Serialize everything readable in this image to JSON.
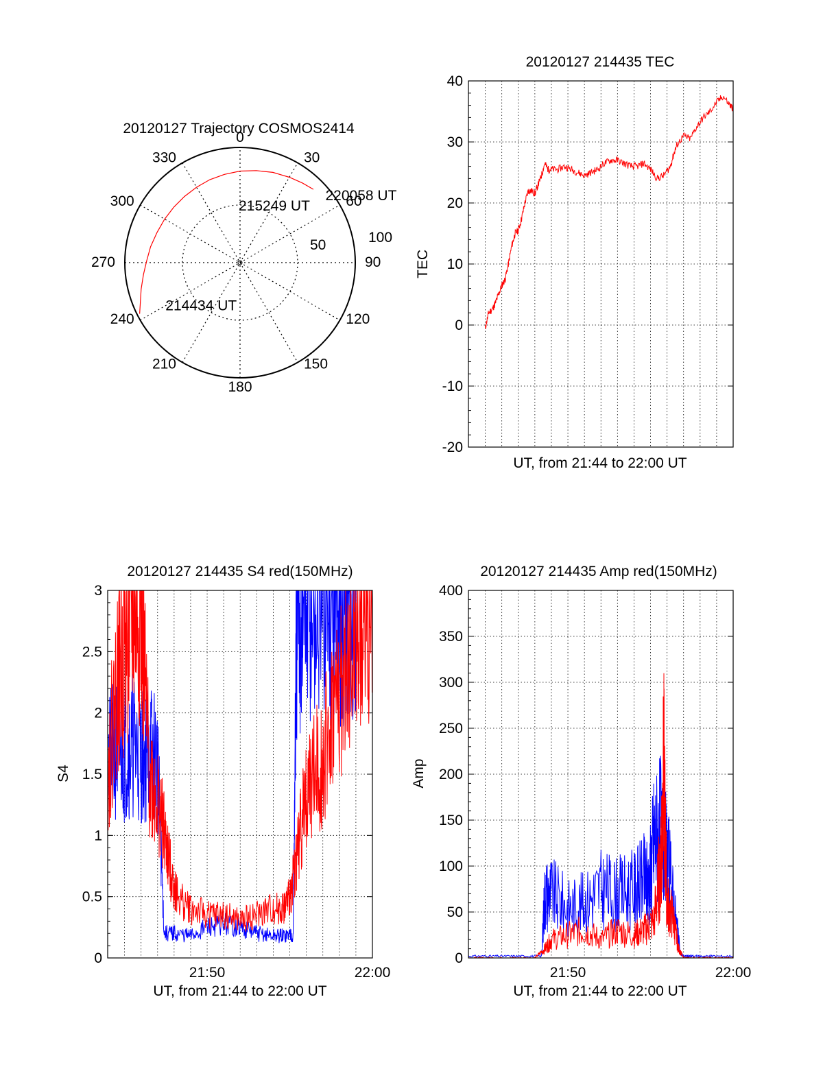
{
  "chart_data": [
    {
      "type": "polar",
      "title": "20120127 Trajectory COSMOS2414",
      "azimuth_labels": [
        "0",
        "30",
        "60",
        "90",
        "120",
        "150",
        "180",
        "210",
        "240",
        "270",
        "300",
        "330"
      ],
      "elevation_ring_labels": [
        "50",
        "100"
      ],
      "trajectory_color": "#ff0000",
      "trajectory": {
        "azimuth_deg": [
          243,
          248,
          255,
          263,
          271,
          280,
          290,
          300,
          310,
          320,
          330,
          340,
          350,
          0,
          10,
          20,
          30,
          38,
          45
        ],
        "zenith_deg": [
          88,
          84,
          80,
          76,
          73,
          71,
          69,
          68,
          67.5,
          67.5,
          68,
          69,
          70,
          71.5,
          73,
          75,
          77,
          79,
          81
        ]
      },
      "annotations": [
        {
          "text": "220058 UT",
          "azimuth_deg": 52,
          "zenith_deg": 86
        },
        {
          "text": "215249 UT",
          "azimuth_deg": 0,
          "zenith_deg": 45
        },
        {
          "text": "214434 UT",
          "azimuth_deg": 240,
          "zenith_deg": 66
        }
      ]
    },
    {
      "type": "line",
      "title": "20120127 214435 TEC",
      "xlabel": "UT, from 21:44 to 22:00 UT",
      "ylabel": "TEC",
      "xlim": [
        21.733,
        22.0
      ],
      "ylim": [
        -20,
        40
      ],
      "yticks": [
        "-20",
        "-10",
        "0",
        "10",
        "20",
        "30",
        "40"
      ],
      "grid": true,
      "series": [
        {
          "color": "#ff0000",
          "x": [
            21.75,
            21.7533,
            21.7567,
            21.76,
            21.7633,
            21.7667,
            21.77,
            21.7733,
            21.7767,
            21.78,
            21.7833,
            21.7867,
            21.79,
            21.7933,
            21.7967,
            21.8,
            21.8033,
            21.8067,
            21.81,
            21.8133,
            21.8167,
            21.8233,
            21.83,
            21.8367,
            21.8433,
            21.85,
            21.8567,
            21.8633,
            21.87,
            21.8767,
            21.8833,
            21.89,
            21.8967,
            21.9033,
            21.91,
            21.9167,
            21.9233,
            21.93,
            21.9367,
            21.94,
            21.9433,
            21.95,
            21.9567,
            21.9633,
            21.97,
            21.9767,
            21.9833,
            21.99,
            21.9967,
            22.0
          ],
          "y": [
            -0.5,
            2,
            2.5,
            3.5,
            5,
            6.5,
            7.5,
            10,
            13,
            15,
            15.5,
            17.5,
            20,
            22,
            22,
            21.5,
            23,
            24.5,
            26.5,
            25.5,
            25.5,
            25.5,
            26,
            25.5,
            25,
            24.5,
            25,
            25.5,
            26.5,
            27,
            27,
            26.5,
            26,
            26,
            26.5,
            25.5,
            24,
            24.5,
            26,
            28,
            29.5,
            31,
            30.5,
            32.5,
            34,
            35,
            36.5,
            37.5,
            36,
            35.5
          ]
        }
      ]
    },
    {
      "type": "line",
      "title": "20120127 214435 S4 red(150MHz)",
      "xlabel": "UT, from 21:44 to 22:00 UT",
      "ylabel": "S4",
      "xlim": [
        21.733,
        22.0
      ],
      "ylim": [
        0,
        3
      ],
      "xticks": [
        "21:50",
        "22:00"
      ],
      "yticks": [
        "0",
        "0.5",
        "1",
        "1.5",
        "2",
        "2.5",
        "3"
      ],
      "grid": true,
      "series": [
        {
          "color": "#0000ff",
          "x": [
            21.7333,
            21.7417,
            21.75,
            21.7583,
            21.7667,
            21.775,
            21.7833,
            21.79,
            21.8,
            21.8167,
            21.8333,
            21.85,
            21.8667,
            21.8833,
            21.9,
            21.9117,
            21.92,
            21.9233,
            21.93,
            21.94,
            21.95,
            21.96,
            21.9667,
            21.975,
            21.9833
          ],
          "y": [
            1.6,
            1.7,
            1.7,
            1.75,
            1.65,
            1.7,
            1.6,
            0.2,
            0.2,
            0.18,
            0.25,
            0.28,
            0.25,
            0.2,
            0.18,
            0.18,
            0.2,
            2.5,
            2.8,
            2.8,
            2.9,
            2.9,
            2.9,
            2.9,
            3.0
          ]
        },
        {
          "color": "#ff0000",
          "x": [
            21.7333,
            21.7417,
            21.75,
            21.7583,
            21.7667,
            21.775,
            21.7833,
            21.79,
            21.7967,
            21.8033,
            21.8167,
            21.8333,
            21.85,
            21.8667,
            21.8833,
            21.9,
            21.91,
            21.9167,
            21.9233,
            21.93,
            21.94,
            21.95,
            21.96,
            21.97,
            21.98,
            21.99,
            22.0
          ],
          "y": [
            1.5,
            2.2,
            2.5,
            2.8,
            2.8,
            1.5,
            1.3,
            1.0,
            0.7,
            0.5,
            0.4,
            0.35,
            0.35,
            0.3,
            0.35,
            0.4,
            0.4,
            0.5,
            0.8,
            1.2,
            1.5,
            1.6,
            2.0,
            2.2,
            2.5,
            2.8,
            2.8
          ]
        }
      ]
    },
    {
      "type": "line",
      "title": "20120127 214435 Amp red(150MHz)",
      "xlabel": "UT, from 21:44 to 22:00 UT",
      "ylabel": "Amp",
      "xlim": [
        21.733,
        22.0
      ],
      "ylim": [
        0,
        400
      ],
      "xticks": [
        "21:50",
        "22:00"
      ],
      "yticks": [
        "0",
        "50",
        "100",
        "150",
        "200",
        "250",
        "300",
        "350",
        "400"
      ],
      "grid": true,
      "series": [
        {
          "color": "#0000ff",
          "x": [
            21.7333,
            21.7583,
            21.7833,
            21.8067,
            21.81,
            21.8167,
            21.8333,
            21.85,
            21.8667,
            21.8833,
            21.9,
            21.91,
            21.915,
            21.92,
            21.9267,
            21.9333,
            21.94,
            21.9467,
            21.95,
            21.9583,
            21.975,
            22.0
          ],
          "y": [
            2,
            2,
            2,
            2,
            70,
            70,
            55,
            60,
            75,
            70,
            75,
            85,
            80,
            130,
            140,
            110,
            60,
            5,
            2,
            2,
            2,
            2
          ]
        },
        {
          "color": "#ff0000",
          "x": [
            21.7333,
            21.7583,
            21.7833,
            21.8,
            21.81,
            21.8167,
            21.8333,
            21.85,
            21.8667,
            21.8833,
            21.9,
            21.91,
            21.92,
            21.9267,
            21.93,
            21.9333,
            21.94,
            21.945,
            21.95,
            21.9583,
            21.975,
            22.0
          ],
          "y": [
            0,
            0,
            0,
            0,
            10,
            20,
            25,
            30,
            20,
            30,
            25,
            30,
            40,
            100,
            200,
            60,
            40,
            10,
            0,
            0,
            0,
            0
          ]
        }
      ]
    }
  ]
}
